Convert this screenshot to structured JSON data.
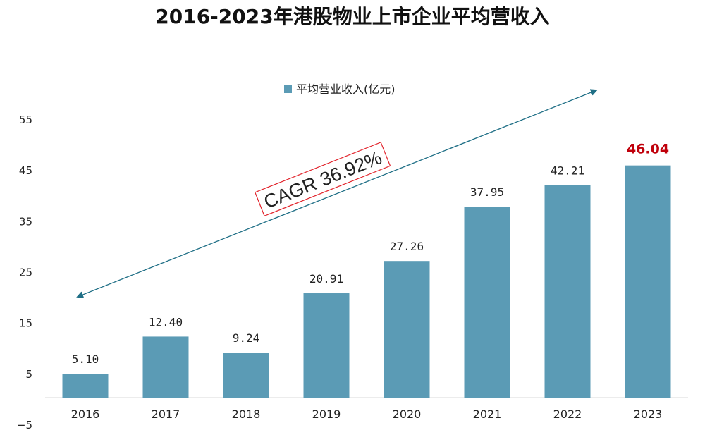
{
  "chart_data": {
    "type": "bar",
    "title": "2016-2023年港股物业上市企业平均营收入",
    "categories": [
      "2016",
      "2017",
      "2018",
      "2019",
      "2020",
      "2021",
      "2022",
      "2023"
    ],
    "series": [
      {
        "name": "平均营业收入(亿元)",
        "values": [
          5.1,
          12.4,
          9.24,
          20.91,
          27.26,
          37.95,
          42.21,
          46.04
        ],
        "value_labels": [
          "5.10",
          "12.40",
          "9.24",
          "20.91",
          "27.26",
          "37.95",
          "42.21",
          "46.04"
        ]
      }
    ],
    "highlight_index": 7,
    "ylim": [
      -5,
      55
    ],
    "yticks": [
      55,
      45,
      35,
      25,
      15,
      5,
      -5
    ],
    "xlabel": "",
    "ylabel": "",
    "legend_position": "top-center",
    "grid": false,
    "annotation": "CAGR 36.92%",
    "colors": {
      "bar": "#5b9bb5",
      "arrow": "#1f6f86",
      "highlight": "#c0000b",
      "annotation_border": "#e2242c"
    }
  }
}
